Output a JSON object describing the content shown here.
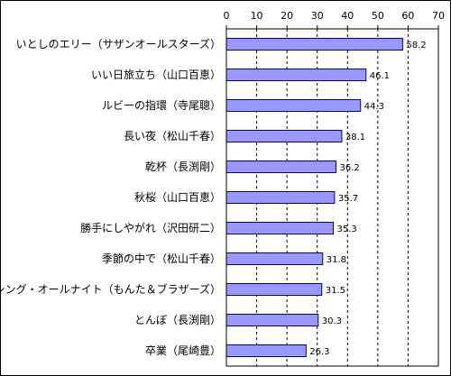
{
  "chart_data": {
    "type": "bar",
    "orientation": "horizontal",
    "xlim": [
      0,
      70
    ],
    "ticks": [
      0,
      10,
      20,
      30,
      40,
      50,
      60,
      70
    ],
    "grid": true,
    "bar_color": "#9999ff",
    "bar_edge_color": "#000080",
    "categories": [
      "いとしのエリー（サザンオールスターズ）",
      "いい日旅立ち（山口百恵）",
      "ルビーの指環（寺尾聰）",
      "長い夜（松山千春）",
      "乾杯（長渕剛）",
      "秋桜（山口百恵）",
      "勝手にしやがれ（沢田研二）",
      "季節の中で（松山千春）",
      "ダンシング・オールナイト（もんた＆ブラザーズ）",
      "とんぼ（長渕剛）",
      "卒業（尾崎豊）"
    ],
    "values": [
      58.2,
      46.1,
      44.3,
      38.1,
      36.2,
      35.7,
      35.3,
      31.8,
      31.5,
      30.3,
      26.3
    ],
    "value_labels": [
      "58.2",
      "46.1",
      "44.3",
      "38.1",
      "36.2",
      "35.7",
      "35.3",
      "31.8",
      "31.5",
      "30.3",
      "26.3"
    ]
  }
}
